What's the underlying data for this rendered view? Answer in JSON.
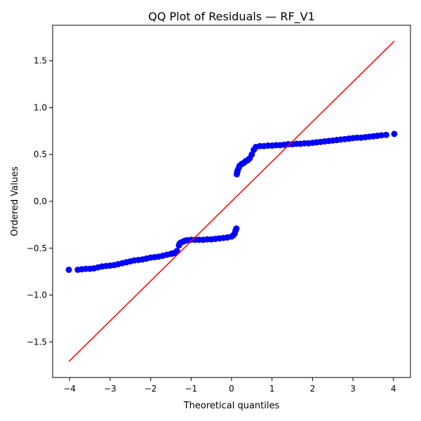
{
  "chart_data": {
    "type": "scatter",
    "title": "QQ Plot of Residuals — RF_V1",
    "xlabel": "Theoretical quantiles",
    "ylabel": "Ordered Values",
    "xlim": [
      -4.42,
      4.42
    ],
    "ylim": [
      -1.88,
      1.88
    ],
    "xticks": [
      -4,
      -3,
      -2,
      -1,
      0,
      1,
      2,
      3,
      4
    ],
    "xtick_labels": [
      "−4",
      "−3",
      "−2",
      "−1",
      "0",
      "1",
      "2",
      "3",
      "4"
    ],
    "yticks": [
      -1.5,
      -1.0,
      -0.5,
      0.0,
      0.5,
      1.0,
      1.5
    ],
    "ytick_labels": [
      "−1.5",
      "−1.0",
      "−0.5",
      "0.0",
      "0.5",
      "1.0",
      "1.5"
    ],
    "grid": false,
    "series": [
      {
        "kind": "points",
        "color": "#0000ff",
        "x": [
          -4.02,
          -3.8,
          -3.7,
          -3.6,
          -3.5,
          -3.4,
          -3.3,
          -3.2,
          -3.1,
          -3.0,
          -2.9,
          -2.8,
          -2.7,
          -2.6,
          -2.5,
          -2.4,
          -2.3,
          -2.2,
          -2.1,
          -2.0,
          -1.9,
          -1.8,
          -1.7,
          -1.6,
          -1.5,
          -1.45,
          -1.4,
          -1.35,
          -1.3,
          -1.28,
          -1.25,
          -1.2,
          -1.15,
          -1.1,
          -1.0,
          -0.9,
          -0.8,
          -0.7,
          -0.6,
          -0.5,
          -0.4,
          -0.3,
          -0.2,
          -0.1,
          0.0,
          0.05,
          0.08,
          0.1,
          0.12,
          0.13,
          0.14,
          0.15,
          0.18,
          0.2,
          0.25,
          0.3,
          0.35,
          0.4,
          0.45,
          0.5,
          0.55,
          0.6,
          0.7,
          0.8,
          0.9,
          1.0,
          1.1,
          1.2,
          1.3,
          1.4,
          1.5,
          1.6,
          1.7,
          1.8,
          1.9,
          2.0,
          2.1,
          2.2,
          2.3,
          2.4,
          2.5,
          2.6,
          2.7,
          2.8,
          2.9,
          3.0,
          3.1,
          3.2,
          3.3,
          3.4,
          3.5,
          3.6,
          3.7,
          3.82,
          4.02
        ],
        "y": [
          -0.73,
          -0.73,
          -0.725,
          -0.72,
          -0.72,
          -0.715,
          -0.705,
          -0.695,
          -0.69,
          -0.685,
          -0.68,
          -0.67,
          -0.66,
          -0.65,
          -0.64,
          -0.63,
          -0.625,
          -0.62,
          -0.61,
          -0.6,
          -0.595,
          -0.59,
          -0.58,
          -0.57,
          -0.56,
          -0.555,
          -0.55,
          -0.53,
          -0.47,
          -0.45,
          -0.44,
          -0.43,
          -0.42,
          -0.415,
          -0.41,
          -0.41,
          -0.41,
          -0.41,
          -0.405,
          -0.405,
          -0.4,
          -0.395,
          -0.39,
          -0.385,
          -0.375,
          -0.36,
          -0.34,
          -0.31,
          -0.29,
          0.29,
          0.31,
          0.33,
          0.36,
          0.38,
          0.4,
          0.41,
          0.43,
          0.44,
          0.46,
          0.5,
          0.55,
          0.58,
          0.59,
          0.59,
          0.595,
          0.595,
          0.6,
          0.6,
          0.605,
          0.61,
          0.61,
          0.615,
          0.615,
          0.62,
          0.62,
          0.625,
          0.63,
          0.635,
          0.64,
          0.645,
          0.65,
          0.655,
          0.66,
          0.665,
          0.67,
          0.675,
          0.68,
          0.68,
          0.685,
          0.69,
          0.695,
          0.7,
          0.705,
          0.71,
          0.72
        ]
      },
      {
        "kind": "line",
        "color": "#ff0000",
        "x": [
          -4.02,
          4.02
        ],
        "y": [
          -1.71,
          1.71
        ]
      }
    ]
  }
}
